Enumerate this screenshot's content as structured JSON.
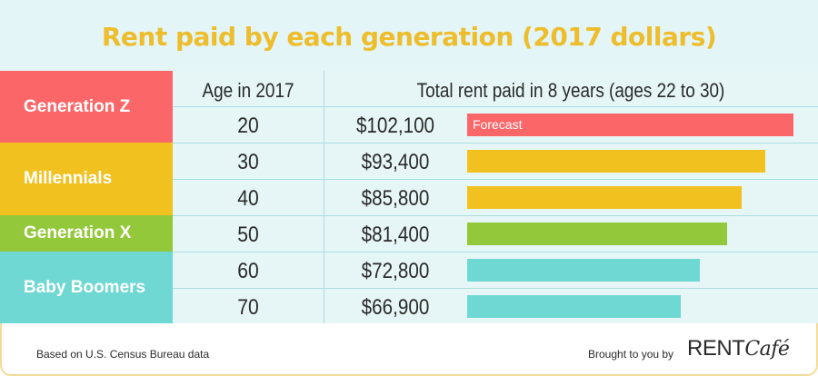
{
  "chart_data": {
    "type": "table",
    "title": "Rent paid by each generation (2017 dollars)",
    "columns": [
      "",
      "Age in 2017",
      "Total rent paid in 8 years (ages 22 to 30)"
    ],
    "groups": [
      {
        "name": "Generation Z",
        "color": "#fb6768"
      },
      {
        "name": "Millennials",
        "color": "#f1c21f"
      },
      {
        "name": "Generation X",
        "color": "#92c83a"
      },
      {
        "name": "Baby Boomers",
        "color": "#6fd8d3"
      }
    ],
    "rows": [
      {
        "generation": "Generation Z",
        "age": "20",
        "rent_label": "$102,100",
        "rent": 102100,
        "note": "Forecast"
      },
      {
        "generation": "Millennials",
        "age": "30",
        "rent_label": "$93,400",
        "rent": 93400
      },
      {
        "generation": "Millennials",
        "age": "40",
        "rent_label": "$85,800",
        "rent": 85800
      },
      {
        "generation": "Generation X",
        "age": "50",
        "rent_label": "$81,400",
        "rent": 81400
      },
      {
        "generation": "Baby Boomers",
        "age": "60",
        "rent_label": "$72,800",
        "rent": 72800
      },
      {
        "generation": "Baby Boomers",
        "age": "70",
        "rent_label": "$66,900",
        "rent": 66900
      }
    ]
  },
  "footer": {
    "source": "Based on U.S. Census Bureau data",
    "brought_by": "Brought to you by",
    "logo_rent": "RENT",
    "logo_cafe": "Café"
  }
}
